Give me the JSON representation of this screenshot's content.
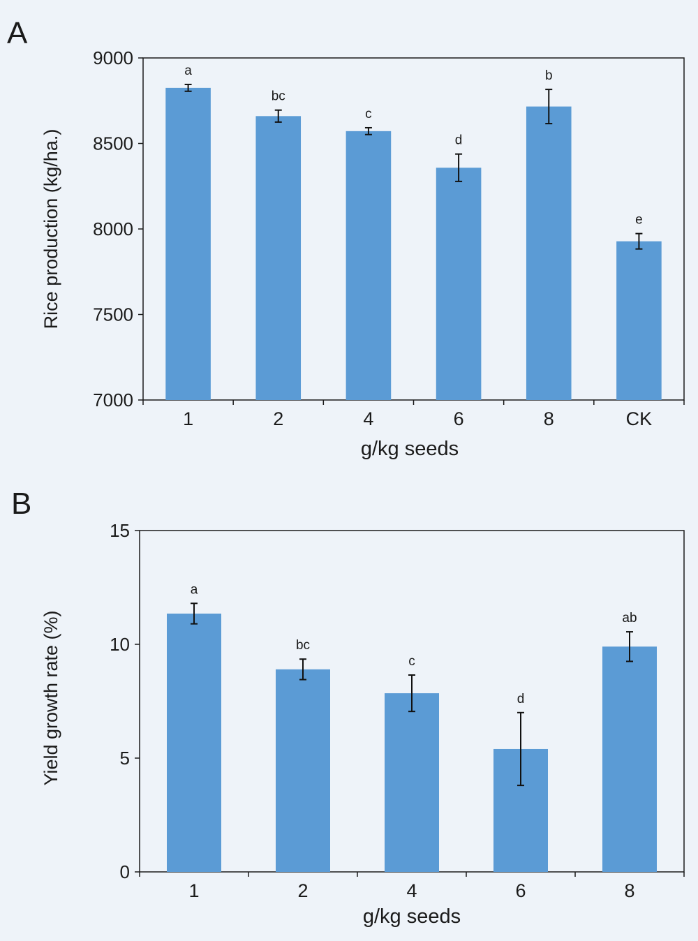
{
  "chart_data": [
    {
      "panel_label": "A",
      "type": "bar",
      "categories": [
        "1",
        "2",
        "4",
        "6",
        "8",
        "CK"
      ],
      "values": [
        8825,
        8660,
        8572,
        8358,
        8716,
        7928
      ],
      "errors": [
        20,
        35,
        20,
        80,
        100,
        45
      ],
      "significance_letters": [
        "a",
        "bc",
        "c",
        "d",
        "b",
        "e"
      ],
      "xlabel": "g/kg seeds",
      "ylabel": "Rice production (kg/ha.)",
      "ylim": [
        7000,
        9000
      ],
      "yticks": [
        7000,
        7500,
        8000,
        8500,
        9000
      ],
      "bar_color": "#5b9bd5",
      "grid": false
    },
    {
      "panel_label": "B",
      "type": "bar",
      "categories": [
        "1",
        "2",
        "4",
        "6",
        "8"
      ],
      "values": [
        11.35,
        8.9,
        7.85,
        5.4,
        9.9
      ],
      "errors": [
        0.45,
        0.45,
        0.8,
        1.6,
        0.65
      ],
      "significance_letters": [
        "a",
        "bc",
        "c",
        "d",
        "ab"
      ],
      "xlabel": "g/kg seeds",
      "ylabel": "Yield growth rate (%)",
      "ylim": [
        0,
        15
      ],
      "yticks": [
        0,
        5,
        10,
        15
      ],
      "bar_color": "#5b9bd5",
      "grid": false
    }
  ]
}
